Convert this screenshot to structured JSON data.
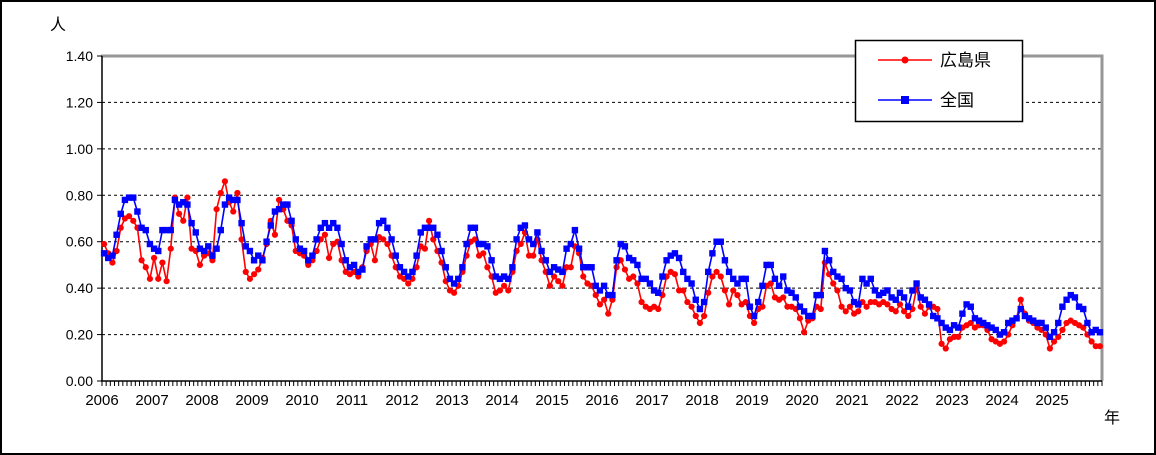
{
  "chart_data": {
    "type": "line",
    "ylabel_unit": "人",
    "xlabel_unit": "年",
    "ylim": [
      0,
      1.4
    ],
    "y_tick_step": 0.2,
    "y_tick_labels": [
      "0.00",
      "0.20",
      "0.40",
      "0.60",
      "0.80",
      "1.00",
      "1.20",
      "1.40"
    ],
    "x_tick_labels": [
      "2006",
      "2007",
      "2008",
      "2009",
      "2010",
      "2011",
      "2012",
      "2013",
      "2014",
      "2015",
      "2016",
      "2017",
      "2018",
      "2019",
      "2020",
      "2021",
      "2022",
      "2023",
      "2024",
      "2025"
    ],
    "x_frequency": "monthly",
    "points_per_year": 12,
    "n_points": 240,
    "grid": "horizontal-dashed",
    "legend_position": "top-right",
    "series": [
      {
        "name": "広島県",
        "color": "#FF0000",
        "marker": "circle",
        "values": [
          0.59,
          0.55,
          0.51,
          0.56,
          0.66,
          0.7,
          0.71,
          0.69,
          0.66,
          0.52,
          0.49,
          0.44,
          0.53,
          0.44,
          0.51,
          0.43,
          0.57,
          0.79,
          0.72,
          0.69,
          0.79,
          0.57,
          0.56,
          0.5,
          0.54,
          0.55,
          0.52,
          0.74,
          0.81,
          0.86,
          0.77,
          0.73,
          0.81,
          0.61,
          0.47,
          0.44,
          0.46,
          0.48,
          0.53,
          0.59,
          0.69,
          0.63,
          0.78,
          0.74,
          0.69,
          0.67,
          0.56,
          0.55,
          0.54,
          0.5,
          0.52,
          0.56,
          0.61,
          0.63,
          0.53,
          0.59,
          0.6,
          0.52,
          0.47,
          0.46,
          0.47,
          0.45,
          0.49,
          0.56,
          0.59,
          0.52,
          0.62,
          0.61,
          0.59,
          0.54,
          0.49,
          0.45,
          0.44,
          0.42,
          0.44,
          0.49,
          0.58,
          0.57,
          0.69,
          0.61,
          0.56,
          0.51,
          0.43,
          0.39,
          0.38,
          0.41,
          0.47,
          0.54,
          0.6,
          0.61,
          0.54,
          0.55,
          0.49,
          0.45,
          0.38,
          0.39,
          0.41,
          0.39,
          0.47,
          0.56,
          0.59,
          0.64,
          0.54,
          0.54,
          0.61,
          0.52,
          0.47,
          0.41,
          0.45,
          0.43,
          0.41,
          0.49,
          0.49,
          0.58,
          0.55,
          0.45,
          0.42,
          0.41,
          0.37,
          0.33,
          0.35,
          0.29,
          0.35,
          0.49,
          0.52,
          0.48,
          0.44,
          0.45,
          0.42,
          0.34,
          0.32,
          0.31,
          0.32,
          0.31,
          0.37,
          0.45,
          0.47,
          0.46,
          0.39,
          0.39,
          0.34,
          0.32,
          0.28,
          0.25,
          0.28,
          0.38,
          0.45,
          0.47,
          0.45,
          0.39,
          0.33,
          0.39,
          0.37,
          0.33,
          0.34,
          0.28,
          0.25,
          0.31,
          0.32,
          0.41,
          0.42,
          0.36,
          0.35,
          0.36,
          0.32,
          0.32,
          0.31,
          0.27,
          0.21,
          0.26,
          0.27,
          0.32,
          0.31,
          0.51,
          0.46,
          0.42,
          0.39,
          0.32,
          0.3,
          0.32,
          0.29,
          0.3,
          0.34,
          0.32,
          0.34,
          0.34,
          0.33,
          0.34,
          0.33,
          0.31,
          0.3,
          0.33,
          0.3,
          0.28,
          0.31,
          0.4,
          0.32,
          0.29,
          0.32,
          0.32,
          0.31,
          0.16,
          0.14,
          0.18,
          0.19,
          0.19,
          0.23,
          0.24,
          0.25,
          0.23,
          0.24,
          0.24,
          0.22,
          0.18,
          0.17,
          0.16,
          0.17,
          0.2,
          0.24,
          0.27,
          0.35,
          0.29,
          0.26,
          0.25,
          0.23,
          0.22,
          0.2,
          0.14,
          0.17,
          0.19,
          0.22,
          0.25,
          0.26,
          0.25,
          0.24,
          0.23,
          0.2,
          0.17,
          0.15,
          0.15
        ]
      },
      {
        "name": "全国",
        "color": "#0000FF",
        "marker": "square",
        "values": [
          0.55,
          0.53,
          0.54,
          0.63,
          0.72,
          0.78,
          0.79,
          0.79,
          0.73,
          0.66,
          0.65,
          0.59,
          0.57,
          0.56,
          0.65,
          0.65,
          0.65,
          0.78,
          0.76,
          0.77,
          0.76,
          0.68,
          0.64,
          0.57,
          0.56,
          0.58,
          0.54,
          0.57,
          0.65,
          0.76,
          0.79,
          0.78,
          0.78,
          0.68,
          0.58,
          0.56,
          0.52,
          0.54,
          0.52,
          0.6,
          0.67,
          0.73,
          0.74,
          0.76,
          0.76,
          0.69,
          0.61,
          0.57,
          0.56,
          0.52,
          0.54,
          0.61,
          0.66,
          0.68,
          0.66,
          0.68,
          0.66,
          0.59,
          0.52,
          0.49,
          0.5,
          0.47,
          0.48,
          0.58,
          0.61,
          0.61,
          0.68,
          0.69,
          0.66,
          0.61,
          0.54,
          0.49,
          0.47,
          0.45,
          0.47,
          0.54,
          0.64,
          0.66,
          0.66,
          0.66,
          0.63,
          0.56,
          0.49,
          0.44,
          0.42,
          0.44,
          0.49,
          0.59,
          0.66,
          0.66,
          0.59,
          0.59,
          0.58,
          0.52,
          0.45,
          0.44,
          0.45,
          0.44,
          0.49,
          0.61,
          0.66,
          0.67,
          0.61,
          0.59,
          0.64,
          0.56,
          0.52,
          0.47,
          0.49,
          0.48,
          0.47,
          0.57,
          0.59,
          0.65,
          0.57,
          0.49,
          0.49,
          0.49,
          0.41,
          0.39,
          0.41,
          0.37,
          0.37,
          0.52,
          0.59,
          0.58,
          0.53,
          0.52,
          0.5,
          0.44,
          0.44,
          0.42,
          0.39,
          0.38,
          0.45,
          0.52,
          0.54,
          0.55,
          0.53,
          0.47,
          0.44,
          0.42,
          0.35,
          0.31,
          0.34,
          0.47,
          0.55,
          0.6,
          0.6,
          0.52,
          0.47,
          0.44,
          0.42,
          0.44,
          0.44,
          0.32,
          0.28,
          0.34,
          0.41,
          0.5,
          0.5,
          0.44,
          0.41,
          0.45,
          0.39,
          0.38,
          0.36,
          0.32,
          0.3,
          0.28,
          0.28,
          0.37,
          0.37,
          0.56,
          0.52,
          0.47,
          0.45,
          0.44,
          0.4,
          0.39,
          0.34,
          0.33,
          0.44,
          0.42,
          0.44,
          0.39,
          0.37,
          0.38,
          0.39,
          0.36,
          0.35,
          0.38,
          0.36,
          0.32,
          0.39,
          0.42,
          0.36,
          0.35,
          0.33,
          0.28,
          0.27,
          0.25,
          0.23,
          0.22,
          0.24,
          0.23,
          0.29,
          0.33,
          0.32,
          0.27,
          0.26,
          0.25,
          0.24,
          0.23,
          0.22,
          0.2,
          0.21,
          0.25,
          0.26,
          0.27,
          0.31,
          0.28,
          0.27,
          0.26,
          0.25,
          0.25,
          0.23,
          0.19,
          0.21,
          0.25,
          0.32,
          0.35,
          0.37,
          0.36,
          0.32,
          0.31,
          0.25,
          0.21,
          0.22,
          0.21
        ]
      }
    ]
  }
}
